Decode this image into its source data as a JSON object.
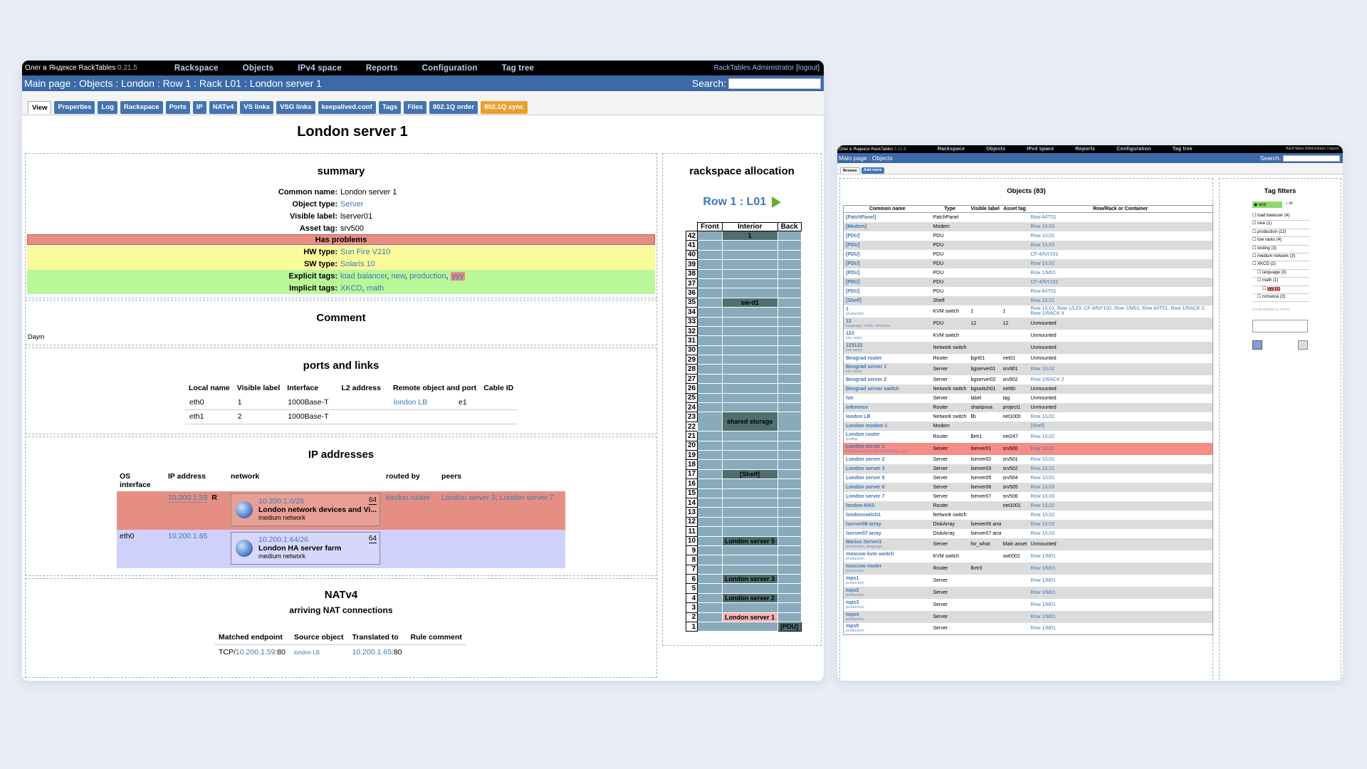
{
  "left": {
    "brand": "Олег в Яндексе RackTables",
    "version": "0.21.5",
    "menu": [
      "Rackspace",
      "Objects",
      "IPv4 space",
      "Reports",
      "Configuration",
      "Tag tree"
    ],
    "admin_user": "RackTables Administrator",
    "admin_logout": "logout",
    "breadcrumb": "Main page : Objects : London : Row 1 : Rack L01 : London server 1",
    "search_label": "Search:",
    "tabs": [
      "View",
      "Properties",
      "Log",
      "Rackspace",
      "Ports",
      "IP",
      "NATv4",
      "VS links",
      "VSG links",
      "keepalived.conf",
      "Tags",
      "Files",
      "802.1Q order",
      "802.1Q sync"
    ],
    "title": "London server 1",
    "summary": {
      "heading": "summary",
      "common_name_k": "Common name:",
      "common_name_v": "London server 1",
      "object_type_k": "Object type:",
      "object_type_v": "Server",
      "visible_label_k": "Visible label:",
      "visible_label_v": "lserver01",
      "asset_tag_k": "Asset tag:",
      "asset_tag_v": "srv500",
      "problems": "Has problems",
      "hw_k": "HW type:",
      "hw_v": "Sun Fire V210",
      "sw_k": "SW type:",
      "sw_v": "Solaris 10",
      "explicit_k": "Explicit tags:",
      "explicit_tags": [
        "load balancer",
        "new",
        "production",
        "ууу"
      ],
      "implicit_k": "Implicit tags:",
      "implicit_tags": [
        "XKCD",
        "math"
      ]
    },
    "comment": {
      "heading": "Comment",
      "text": "Daym"
    },
    "ports": {
      "heading": "ports and links",
      "columns": [
        "Local name",
        "Visible label",
        "Interface",
        "L2 address",
        "Remote object and port",
        "Cable ID"
      ],
      "rows": [
        [
          "eth0",
          "1",
          "1000Base-T",
          "",
          "london LB",
          "e1",
          ""
        ],
        [
          "eth1",
          "2",
          "1000Base-T",
          "",
          "",
          "",
          ""
        ]
      ]
    },
    "ips": {
      "heading": "IP addresses",
      "columns": [
        "OS interface",
        "IP address",
        "network",
        "routed by",
        "peers"
      ],
      "rows": [
        {
          "os_if": "",
          "ip": "10.200.1.59",
          "flag": "R",
          "net": "10.200.1.0/26",
          "mask": "64",
          "net_name": "London network devices and Vi...",
          "net_sub": "medium network",
          "routed": "london router",
          "peers": "London server 3; London server 7",
          "color": "#e58f84"
        },
        {
          "os_if": "eth0",
          "ip": "10.200.1.65",
          "flag": "",
          "net": "10.200.1.64/26",
          "mask": "64",
          "net_name": "London HA server farm",
          "net_sub": "medium network",
          "routed": "",
          "peers": "",
          "color": "#cfd0fb"
        }
      ]
    },
    "nat": {
      "heading": "NATv4",
      "sub": "arriving NAT connections",
      "columns": [
        "Matched endpoint",
        "Source object",
        "Translated to",
        "Rule comment"
      ],
      "row": {
        "proto": "TCP/",
        "ep": "10.200.1.59",
        "ep_port": ":80",
        "src": "london LB",
        "to": "10.200.1.65",
        "to_port": ":80"
      }
    },
    "rackspace": {
      "heading": "rackspace allocation",
      "row_link": "Row 1",
      "rack_link": "L01",
      "cols": [
        "Front",
        "Interior",
        "Back"
      ],
      "labels": {
        "42": "1",
        "35": "sw-d1",
        "23": "shared storage",
        "17": "[Shelf]",
        "10": "London server 5",
        "6": "London server 3",
        "4": "London server 2",
        "2": "London server 1",
        "1": "[PDU]"
      }
    }
  },
  "right": {
    "brand": "Олег в Яндексе RackTables",
    "version": "0.21.5",
    "menu": [
      "Rackspace",
      "Objects",
      "IPv4 space",
      "Reports",
      "Configuration",
      "Tag tree"
    ],
    "admin": "RackTables Administrator | logout",
    "breadcrumb": "Main page : Objects",
    "search_label": "Search:",
    "tabs": [
      "Browse",
      "Add more"
    ],
    "objects_title": "Objects (83)",
    "columns": [
      "Common name",
      "Type",
      "Visible label",
      "Asset tag",
      "Row/Rack or Container"
    ],
    "rows": [
      [
        "[PatchPanel]",
        "",
        "PatchPanel",
        "",
        "",
        "Row A/IT01"
      ],
      [
        "[Modem]",
        "",
        "Modem",
        "",
        "",
        "Row 1/L03"
      ],
      [
        "[PDU]",
        "",
        "PDU",
        "",
        "",
        "Row 1/L01"
      ],
      [
        "[PDU]",
        "",
        "PDU",
        "",
        "",
        "Row 1/L03"
      ],
      [
        "[PDU]",
        "",
        "PDU",
        "",
        "",
        "CF-4/NY101"
      ],
      [
        "[PDU]",
        "",
        "PDU",
        "",
        "",
        "Row 1/L02"
      ],
      [
        "[PDU]",
        "",
        "PDU",
        "",
        "",
        "Row 1/M01"
      ],
      [
        "[PDU]",
        "",
        "PDU",
        "",
        "",
        "CF-4/NY102"
      ],
      [
        "[PDU]",
        "",
        "PDU",
        "",
        "",
        "Row A/IT01"
      ],
      [
        "[Shelf]",
        "",
        "Shelf",
        "",
        "",
        "Row 1/L01"
      ],
      [
        "1",
        "production",
        "KVM switch",
        "1",
        "1",
        "Row 1/L01, Row 1/L03, CF-4/NY100, Row 1/M01, Row A/IT01, Row 1/RACK 2, Row 1/RACK 4"
      ],
      [
        "12",
        "language, math, romance",
        "PDU",
        "12",
        "12",
        "Unmounted"
      ],
      [
        "123",
        "low racks",
        "KVM switch",
        "",
        "",
        "Unmounted"
      ],
      [
        "123123",
        "low racks",
        "Network switch",
        "",
        "",
        "Unmounted"
      ],
      [
        "Beograd router",
        "",
        "Router",
        "bgrt01",
        "net01",
        "Unmounted"
      ],
      [
        "Beograd server 1",
        "low racks",
        "Server",
        "bgserver01",
        "srv901",
        "Row 1/L02"
      ],
      [
        "Beograd server 2",
        "",
        "Server",
        "bgserver02",
        "srv902",
        "Row 1/RACK 2"
      ],
      [
        "Beograd server switch",
        "",
        "Network switch",
        "bgswitch01",
        "net90",
        "Unmounted"
      ],
      [
        "hm",
        "",
        "Server",
        "label",
        "tag",
        "Unmounted"
      ],
      [
        "inference",
        "",
        "Router",
        "sharipova",
        "project1",
        "Unmounted"
      ],
      [
        "london LB",
        "",
        "Network switch",
        "llb",
        "net1000",
        "Row 1/L02"
      ],
      [
        "London modem 1",
        "",
        "Modem",
        "",
        "",
        "[Shelf]"
      ],
      [
        "London router",
        "testing",
        "Router",
        "lbrtr1",
        "net247",
        "Row 1/L02"
      ],
      [
        "London server 1",
        "load balancer, new, production, ууу",
        "Server",
        "lserver01",
        "srv500",
        "Row 1/L01"
      ],
      [
        "London server 2",
        "",
        "Server",
        "lserver02",
        "srv501",
        "Row 1/L01"
      ],
      [
        "London server 3",
        "",
        "Server",
        "lserver03",
        "srv502",
        "Row 1/L01"
      ],
      [
        "London server 5",
        "",
        "Server",
        "lserver05",
        "srv504",
        "Row 1/L01"
      ],
      [
        "London server 6",
        "",
        "Server",
        "lserver06",
        "srv505",
        "Row 1/L03"
      ],
      [
        "London server 7",
        "",
        "Server",
        "lserver07",
        "srv506",
        "Row 1/L03"
      ],
      [
        "london-NAS",
        "",
        "Router",
        "",
        "net1001",
        "Row 1/L02"
      ],
      [
        "londonswitch1",
        "",
        "Network switch",
        "",
        "",
        "Row 1/L02"
      ],
      [
        "lserver06 array",
        "",
        "DiskArray",
        "lserver06 array",
        "",
        "Row 1/L03"
      ],
      [
        "lserver07 array",
        "",
        "DiskArray",
        "lserver07 array",
        "",
        "Row 1/L03"
      ],
      [
        "Marios Server3",
        "production, language",
        "Server",
        "for_what",
        "Main asset",
        "Unmounted"
      ],
      [
        "moscow kvm switch",
        "production",
        "KVM switch",
        "",
        "sw0002",
        "Row 1/M01"
      ],
      [
        "moscow router",
        "production",
        "Router",
        "lbrtr3",
        "",
        "Row 1/M01"
      ],
      [
        "mps1",
        "production",
        "Server",
        "",
        "",
        "Row 1/M01"
      ],
      [
        "mps2",
        "production",
        "Server",
        "",
        "",
        "Row 1/M01"
      ],
      [
        "mps3",
        "production",
        "Server",
        "",
        "",
        "Row 1/M01"
      ],
      [
        "mps4",
        "production",
        "Server",
        "",
        "",
        "Row 1/M01"
      ],
      [
        "mps5",
        "production",
        "Server",
        "",
        "",
        "Row 1/M01"
      ]
    ],
    "tagfilters": {
      "title": "Tag filters",
      "and": "and",
      "or": "or",
      "items": [
        "load balancer (4)",
        "new (1)",
        "production (12)",
        "low racks (4)",
        "testing (3)",
        "medium network (3)",
        "XKCD (2)",
        "language (3)",
        "math (1)",
        "ууу (1)",
        "romance (2)"
      ],
      "no_pred": "(no predicates to show)"
    }
  }
}
